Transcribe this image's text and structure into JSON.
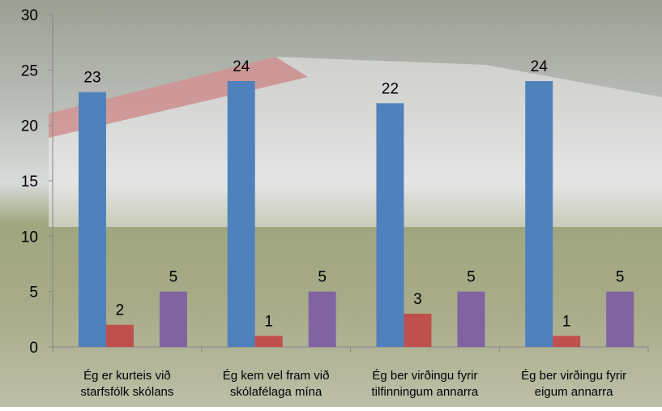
{
  "chart_data": {
    "type": "bar",
    "categories": [
      [
        "Ég er kurteis við",
        "starfsfólk skólans"
      ],
      [
        "Ég kem vel fram við",
        "skólafélaga mína"
      ],
      [
        "Ég ber virðingu fyrir",
        "tilfinningum annarra"
      ],
      [
        "Ég ber virðingu fyrir",
        "eigum annarra"
      ]
    ],
    "series": [
      {
        "color": "#4f81bd",
        "values": [
          23,
          24,
          22,
          24
        ]
      },
      {
        "color": "#c0504d",
        "values": [
          2,
          1,
          3,
          1
        ]
      },
      {
        "color": "#8064a2",
        "values": [
          5,
          5,
          5,
          5
        ]
      }
    ],
    "ylim": [
      0,
      30
    ],
    "yticks": [
      0,
      5,
      10,
      15,
      20,
      25,
      30
    ]
  }
}
